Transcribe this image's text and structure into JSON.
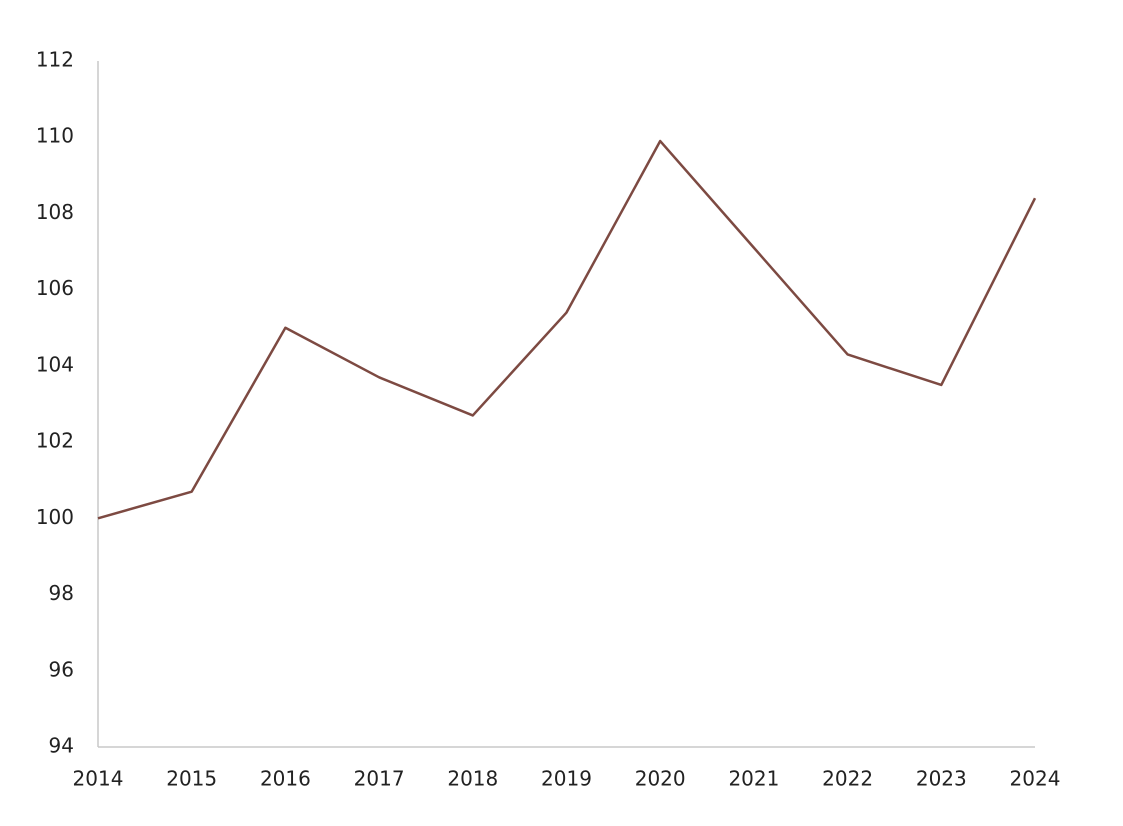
{
  "chart_data": {
    "type": "line",
    "x": [
      2014,
      2015,
      2016,
      2017,
      2018,
      2019,
      2020,
      2021,
      2022,
      2023,
      2024
    ],
    "series": [
      {
        "color": "#7d4a42",
        "values": [
          100.0,
          100.7,
          105.0,
          103.7,
          102.7,
          105.4,
          109.9,
          107.1,
          104.3,
          103.5,
          108.4
        ]
      }
    ],
    "xlim": [
      2014,
      2024
    ],
    "xticks": [
      2014,
      2015,
      2016,
      2017,
      2018,
      2019,
      2020,
      2021,
      2022,
      2023,
      2024
    ],
    "ylim": [
      94,
      112
    ],
    "yticks": [
      94,
      96,
      98,
      100,
      102,
      104,
      106,
      108,
      110,
      112
    ],
    "grid": false
  }
}
